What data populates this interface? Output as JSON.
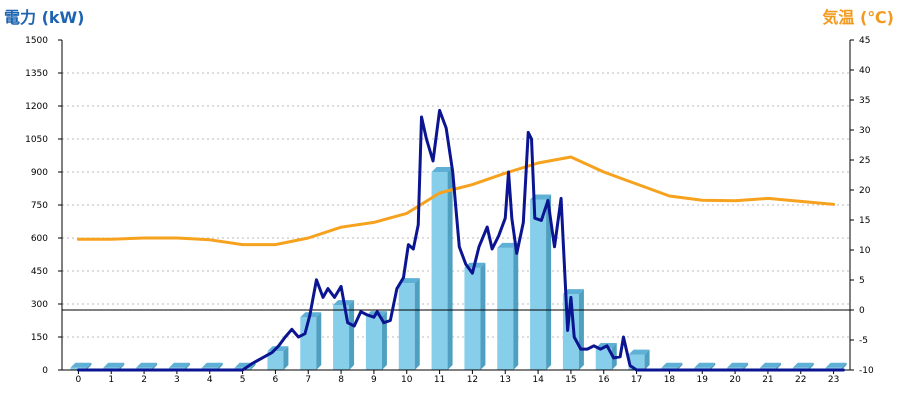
{
  "chart_data": {
    "type": "bar+line",
    "colors": {
      "left_title": "#1f64b0",
      "right_title": "#f29a1e",
      "bar_front": "#87ceea",
      "bar_side": "#4f9fc0",
      "bar_top": "#5fb0d6",
      "power_line": "#0b1591",
      "temp_line": "#f6a21e",
      "grid": "#bbbbbb"
    },
    "left_axis": {
      "title": "電力 (kW)",
      "ylim": [
        0,
        1500
      ],
      "ticks": [
        "0",
        "150",
        "300",
        "450",
        "600",
        "750",
        "900",
        "1050",
        "1200",
        "1350",
        "1500"
      ]
    },
    "right_axis": {
      "title": "気温 (℃)",
      "ylim": [
        -10,
        45
      ],
      "ticks": [
        "-10",
        "-5",
        "0",
        "5",
        "10",
        "15",
        "20",
        "25",
        "30",
        "35",
        "40",
        "45"
      ]
    },
    "categories": [
      "0",
      "1",
      "2",
      "3",
      "4",
      "5",
      "6",
      "7",
      "8",
      "9",
      "10",
      "11",
      "12",
      "13",
      "14",
      "15",
      "16",
      "17",
      "18",
      "19",
      "20",
      "21",
      "22",
      "23"
    ],
    "bars": {
      "axis": "left",
      "values": [
        10,
        10,
        10,
        10,
        10,
        10,
        85,
        240,
        295,
        245,
        395,
        900,
        465,
        555,
        775,
        345,
        100,
        70,
        10,
        10,
        10,
        10,
        10,
        10
      ]
    },
    "power_line": {
      "axis": "left",
      "x": [
        0,
        1,
        2,
        3,
        4,
        5,
        5.3,
        5.6,
        5.9,
        6.1,
        6.3,
        6.5,
        6.7,
        6.9,
        7.05,
        7.25,
        7.45,
        7.6,
        7.8,
        8.0,
        8.2,
        8.4,
        8.6,
        8.8,
        9.0,
        9.1,
        9.3,
        9.5,
        9.7,
        9.9,
        10.05,
        10.2,
        10.35,
        10.45,
        10.6,
        10.8,
        11.0,
        11.2,
        11.4,
        11.6,
        11.8,
        12.0,
        12.2,
        12.45,
        12.6,
        12.8,
        13.0,
        13.1,
        13.2,
        13.35,
        13.55,
        13.7,
        13.8,
        13.9,
        14.1,
        14.3,
        14.5,
        14.7,
        14.9,
        15.0,
        15.1,
        15.3,
        15.5,
        15.7,
        15.9,
        16.1,
        16.3,
        16.5,
        16.6,
        16.8,
        17.0,
        17.3,
        17.6,
        18,
        19,
        20,
        21,
        22,
        23.3
      ],
      "values": [
        0,
        0,
        0,
        0,
        0,
        0,
        30,
        55,
        80,
        110,
        150,
        185,
        150,
        165,
        250,
        410,
        330,
        370,
        330,
        380,
        215,
        200,
        265,
        250,
        240,
        265,
        215,
        225,
        370,
        420,
        570,
        550,
        660,
        1150,
        1050,
        950,
        1180,
        1100,
        900,
        560,
        480,
        440,
        560,
        650,
        550,
        610,
        690,
        900,
        690,
        530,
        670,
        1080,
        1050,
        690,
        680,
        770,
        560,
        780,
        180,
        330,
        150,
        95,
        95,
        110,
        95,
        110,
        55,
        60,
        150,
        20,
        0,
        0,
        0,
        0,
        0,
        0,
        0,
        0,
        0
      ]
    },
    "temperature_line": {
      "axis": "right",
      "x": [
        0,
        1,
        2,
        3,
        4,
        5,
        6,
        7,
        8,
        9,
        10,
        11,
        12,
        13,
        14,
        15,
        16,
        17,
        18,
        19,
        20,
        21,
        22,
        23
      ],
      "values": [
        11.8,
        11.8,
        12.0,
        12.0,
        11.7,
        10.9,
        10.9,
        12.0,
        13.8,
        14.6,
        16.1,
        19.5,
        20.9,
        22.8,
        24.5,
        25.5,
        23.0,
        21.0,
        19.0,
        18.3,
        18.2,
        18.6,
        18.1,
        17.6
      ]
    },
    "grid": true,
    "legend": "none"
  }
}
